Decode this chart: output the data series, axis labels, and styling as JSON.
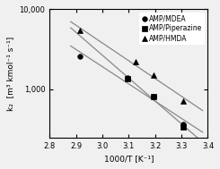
{
  "series": [
    {
      "label": "AMP/MDEA",
      "marker": "o",
      "x_data": [
        2.915,
        3.095,
        3.195,
        3.305
      ],
      "y_data": [
        2600,
        1400,
        820,
        360
      ]
    },
    {
      "label": "AMP/Piperazine",
      "marker": "s",
      "x_data": [
        3.095,
        3.195,
        3.305
      ],
      "y_data": [
        1350,
        820,
        340
      ]
    },
    {
      "label": "AMP/HMDA",
      "marker": "^",
      "x_data": [
        2.915,
        3.125,
        3.195,
        3.305
      ],
      "y_data": [
        5500,
        2200,
        1500,
        720
      ]
    }
  ],
  "line_x_start": 2.88,
  "line_x_end": 3.38,
  "xlabel": "1000/T [K⁻¹]",
  "ylabel": "k₂  [m³ kmol⁻¹ s⁻¹]",
  "xlim": [
    2.8,
    3.4
  ],
  "ylim_low": 250,
  "ylim_high": 10000,
  "yticks": [
    1000,
    10000
  ],
  "xticks": [
    2.8,
    2.9,
    3.0,
    3.1,
    3.2,
    3.3,
    3.4
  ],
  "marker_size": 4,
  "line_color": "#888888",
  "marker_color": "black",
  "background_color": "#f0f0f0",
  "legend_fontsize": 5.5,
  "axis_fontsize": 6.5,
  "tick_fontsize": 6
}
